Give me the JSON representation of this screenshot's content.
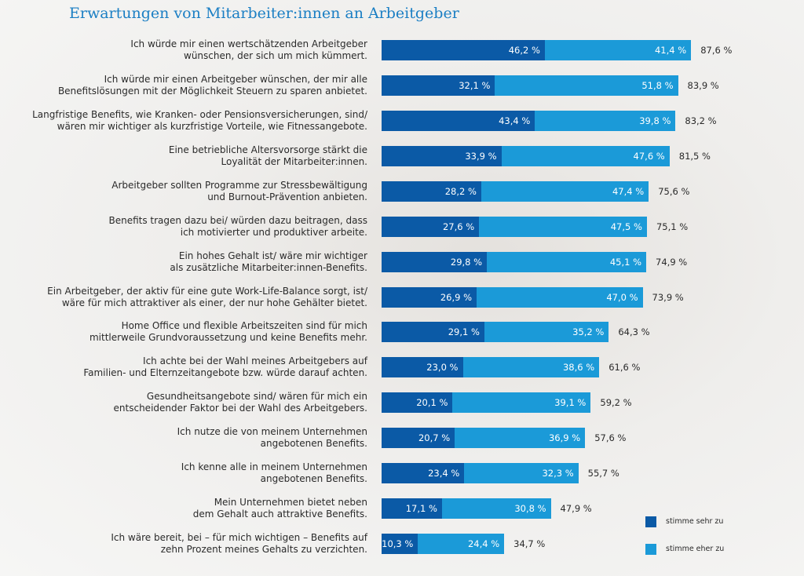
{
  "chart_data": {
    "type": "bar",
    "orientation": "horizontal",
    "stacked": true,
    "title": "Erwartungen von Mitarbeiter:innen an Arbeitgeber",
    "categories": [
      "Ich würde mir einen wertschätzenden Arbeitgeber\nwünschen, der sich um mich kümmert.",
      "Ich würde mir einen Arbeitgeber wünschen, der mir alle\nBenefitslösungen mit der Möglichkeit Steuern zu sparen anbietet.",
      "Langfristige Benefits, wie Kranken- oder Pensionsversicherungen, sind/\nwären mir wichtiger als kurzfristige Vorteile, wie Fitnessangebote.",
      "Eine betriebliche Altersvorsorge stärkt die\nLoyalität der Mitarbeiter:innen.",
      "Arbeitgeber sollten Programme zur Stressbewältigung\nund Burnout-Prävention anbieten.",
      "Benefits tragen dazu bei/ würden dazu beitragen, dass\nich motivierter und produktiver arbeite.",
      "Ein hohes Gehalt ist/ wäre mir wichtiger\nals zusätzliche Mitarbeiter:innen-Benefits.",
      "Ein Arbeitgeber, der aktiv für eine gute Work-Life-Balance sorgt, ist/\nwäre für mich attraktiver als einer, der nur hohe Gehälter bietet.",
      "Home Office und flexible Arbeitszeiten sind für mich\nmittlerweile Grundvoraussetzung und keine Benefits mehr.",
      "Ich achte bei der Wahl meines Arbeitgebers auf\nFamilien- und Elternzeitangebote bzw. würde darauf achten.",
      "Gesundheitsangebote sind/ wären für mich ein\nentscheidender Faktor bei der Wahl des Arbeitgebers.",
      "Ich nutze die von meinem Unternehmen\nangebotenen Benefits.",
      "Ich kenne alle in meinem Unternehmen\nangebotenen Benefits.",
      "Mein Unternehmen bietet neben\ndem Gehalt auch attraktive Benefits.",
      "Ich wäre bereit, bei – für mich wichtigen – Benefits auf\nzehn Prozent meines Gehalts zu verzichten."
    ],
    "series": [
      {
        "name": "stimme sehr zu",
        "color": "#0b5aa6",
        "values": [
          46.2,
          32.1,
          43.4,
          33.9,
          28.2,
          27.6,
          29.8,
          26.9,
          29.1,
          23.0,
          20.1,
          20.7,
          23.4,
          17.1,
          10.3
        ],
        "value_labels": [
          "46,2 %",
          "32,1 %",
          "43,4 %",
          "33,9 %",
          "28,2 %",
          "27,6 %",
          "29,8 %",
          "26,9 %",
          "29,1 %",
          "23,0 %",
          "20,1 %",
          "20,7 %",
          "23,4 %",
          "17,1 %",
          "10,3 %"
        ]
      },
      {
        "name": "stimme eher zu",
        "color": "#1b9ad8",
        "values": [
          41.4,
          51.8,
          39.8,
          47.6,
          47.4,
          47.5,
          45.1,
          47.0,
          35.2,
          38.6,
          39.1,
          36.9,
          32.3,
          30.8,
          24.4
        ],
        "value_labels": [
          "41,4 %",
          "51,8 %",
          "39,8 %",
          "47,6 %",
          "47,4 %",
          "47,5 %",
          "45,1 %",
          "47,0 %",
          "35,2 %",
          "38,6 %",
          "39,1 %",
          "36,9 %",
          "32,3 %",
          "30,8 %",
          "24,4 %"
        ]
      }
    ],
    "totals": [
      87.6,
      83.9,
      83.2,
      81.5,
      75.6,
      75.1,
      74.9,
      73.9,
      64.3,
      61.6,
      59.2,
      57.6,
      55.7,
      47.9,
      34.7
    ],
    "total_labels": [
      "87,6 %",
      "83,9 %",
      "83,2 %",
      "81,5 %",
      "75,6 %",
      "75,1 %",
      "74,9 %",
      "73,9 %",
      "64,3 %",
      "61,6 %",
      "59,2 %",
      "57,6 %",
      "55,7 %",
      "47,9 %",
      "34,7 %"
    ],
    "legend": "bottom-right"
  }
}
